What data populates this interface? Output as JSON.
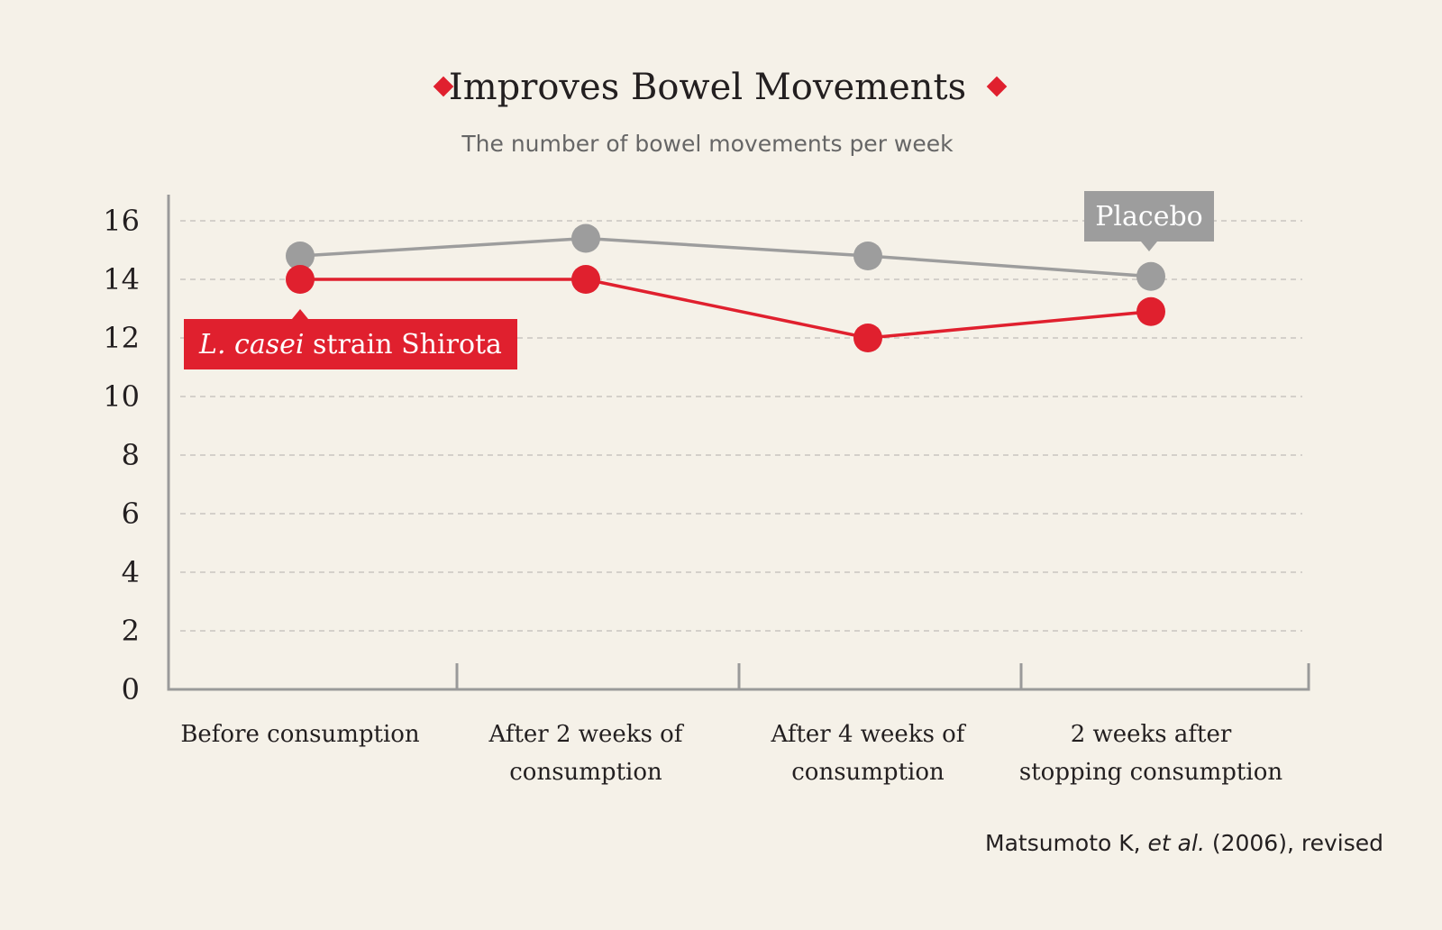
{
  "colors": {
    "background": "#f5f1e8",
    "primary": "#e0202e",
    "placebo": "#9d9d9d",
    "axis": "#9a9a9a",
    "grid": "#c9c6bf"
  },
  "header": {
    "title": "Improves Bowel Movements",
    "subtitle": "The number of bowel movements per week"
  },
  "source": {
    "authors": "Matsumoto K, ",
    "etal": "et al.",
    "rest": " (2006), revised"
  },
  "chart_data": {
    "type": "line",
    "title": "Improves Bowel Movements",
    "subtitle": "The number of bowel movements per week",
    "xlabel": "",
    "ylabel": "",
    "ylim": [
      0,
      16
    ],
    "yticks": [
      "0",
      "2",
      "4",
      "6",
      "8",
      "10",
      "12",
      "14",
      "16"
    ],
    "grid": true,
    "categories": [
      [
        "Before consumption"
      ],
      [
        "After 2 weeks of",
        "consumption"
      ],
      [
        "After 4 weeks of",
        "consumption"
      ],
      [
        "2 weeks after",
        "stopping consumption"
      ]
    ],
    "series": [
      {
        "name": "Placebo",
        "name_italic": "",
        "name_rest": "Placebo",
        "color": "#9d9d9d",
        "values": [
          14.8,
          15.4,
          14.8,
          14.1
        ]
      },
      {
        "name": "L. casei strain Shirota",
        "name_italic": "L. casei",
        "name_rest": " strain Shirota",
        "color": "#e0202e",
        "values": [
          14.0,
          14.0,
          12.0,
          12.9
        ]
      }
    ]
  }
}
